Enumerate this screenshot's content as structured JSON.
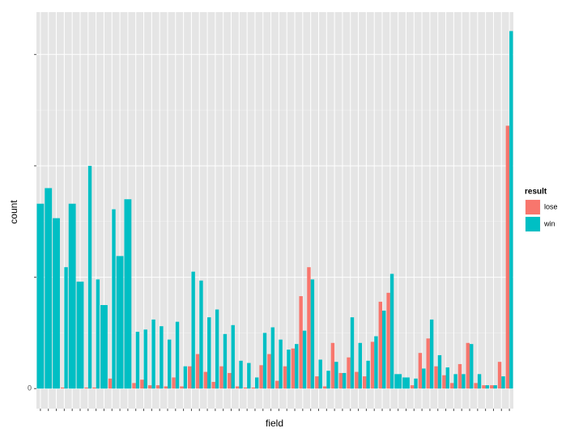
{
  "chart_data": {
    "type": "bar",
    "x_label": "field",
    "y_label": "count",
    "categories": [
      null,
      null,
      null,
      null,
      null,
      null,
      null,
      null,
      null,
      null,
      null,
      null,
      null,
      null,
      null,
      null,
      null,
      null,
      null,
      null,
      null,
      null,
      null,
      null,
      null,
      null,
      null,
      null,
      null,
      null,
      null,
      null,
      null,
      null,
      null,
      null,
      null,
      null,
      null,
      null,
      null,
      null,
      null,
      null,
      null,
      null,
      null,
      null,
      null,
      null,
      null,
      null,
      null,
      null,
      null,
      null,
      null,
      null,
      null,
      null
    ],
    "series": [
      {
        "name": "lose",
        "color": "#F8766D",
        "values": [
          null,
          null,
          null,
          1,
          null,
          null,
          1,
          1,
          null,
          9,
          null,
          null,
          5,
          8,
          3,
          3,
          2,
          10,
          2,
          20,
          31,
          15,
          6,
          20,
          14,
          2,
          1,
          1,
          21,
          31,
          7,
          20,
          36,
          83,
          109,
          11,
          2,
          41,
          14,
          28,
          15,
          11,
          42,
          78,
          86,
          null,
          null,
          3,
          32,
          45,
          20,
          12,
          5,
          22,
          41,
          5,
          3,
          3,
          24,
          236
        ]
      },
      {
        "name": "win",
        "color": "#00BFC4",
        "values": [
          166,
          180,
          153,
          109,
          166,
          96,
          200,
          98,
          75,
          161,
          119,
          170,
          51,
          53,
          62,
          56,
          44,
          60,
          20,
          105,
          97,
          64,
          71,
          49,
          57,
          25,
          23,
          10,
          50,
          55,
          44,
          35,
          40,
          52,
          98,
          26,
          16,
          24,
          14,
          64,
          41,
          25,
          47,
          70,
          103,
          13,
          10,
          9,
          18,
          62,
          30,
          19,
          13,
          13,
          40,
          13,
          3,
          3,
          11,
          321
        ]
      }
    ],
    "ylim": [
      -18,
      338
    ],
    "yticks": [
      0
    ],
    "ygrid": [
      100,
      200,
      300
    ],
    "grid": true,
    "legend_title": "result",
    "legend_position": "right"
  }
}
